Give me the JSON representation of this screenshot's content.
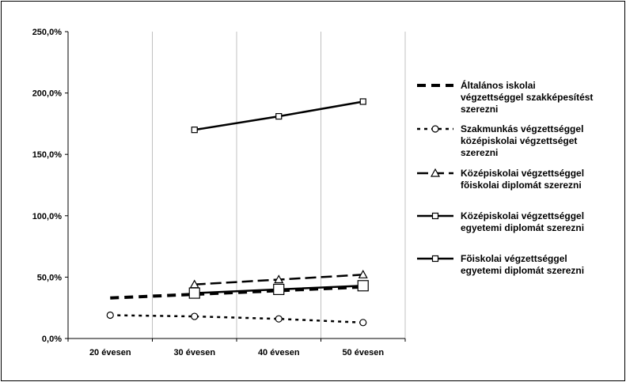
{
  "chart_data": {
    "type": "line",
    "categories": [
      "20 évesen",
      "30 évesen",
      "40 évesen",
      "50 évesen"
    ],
    "y_tick_labels": [
      "0,0%",
      "50,0%",
      "100,0%",
      "150,0%",
      "200,0%",
      "250,0%"
    ],
    "ylim": [
      0,
      250
    ],
    "grid": true,
    "legend_position": "right",
    "series": [
      {
        "name": "Általános iskolai végzettséggel szakképesítést szerezni",
        "name_lines": [
          "Általános iskolai",
          "végzettséggel szakképesítést",
          "szerezni"
        ],
        "style": "dashed-thick",
        "marker": "none",
        "values": [
          33,
          36,
          39,
          42
        ]
      },
      {
        "name": "Szakmunkás végzettséggel középiskolai végzettséget szerezni",
        "name_lines": [
          "Szakmunkás végzettséggel",
          "középiskolai végzettséget",
          "szerezni"
        ],
        "style": "dotted",
        "marker": "circle",
        "values": [
          19,
          18,
          16,
          13
        ]
      },
      {
        "name": "Középiskolai végzettséggel fõiskolai diplomát szerezni",
        "name_lines": [
          "Középiskolai végzettséggel",
          "fõiskolai diplomát szerezni"
        ],
        "style": "long-dash",
        "marker": "triangle",
        "values": [
          null,
          44,
          48,
          52
        ]
      },
      {
        "name": "Középiskolai végzettséggel egyetemi diplomát szerezni",
        "name_lines": [
          "Középiskolai végzettséggel",
          "egyetemi diplomát szerezni"
        ],
        "style": "solid",
        "marker": "square-small",
        "values": [
          null,
          170,
          181,
          193
        ]
      },
      {
        "name": "Fõiskolai végzettséggel egyetemi diplomát szerezni",
        "name_lines": [
          "Fõiskolai végzettséggel",
          "egyetemi diplomát szerezni"
        ],
        "style": "solid",
        "marker": "square-large",
        "values": [
          null,
          37,
          40,
          43
        ]
      }
    ]
  }
}
